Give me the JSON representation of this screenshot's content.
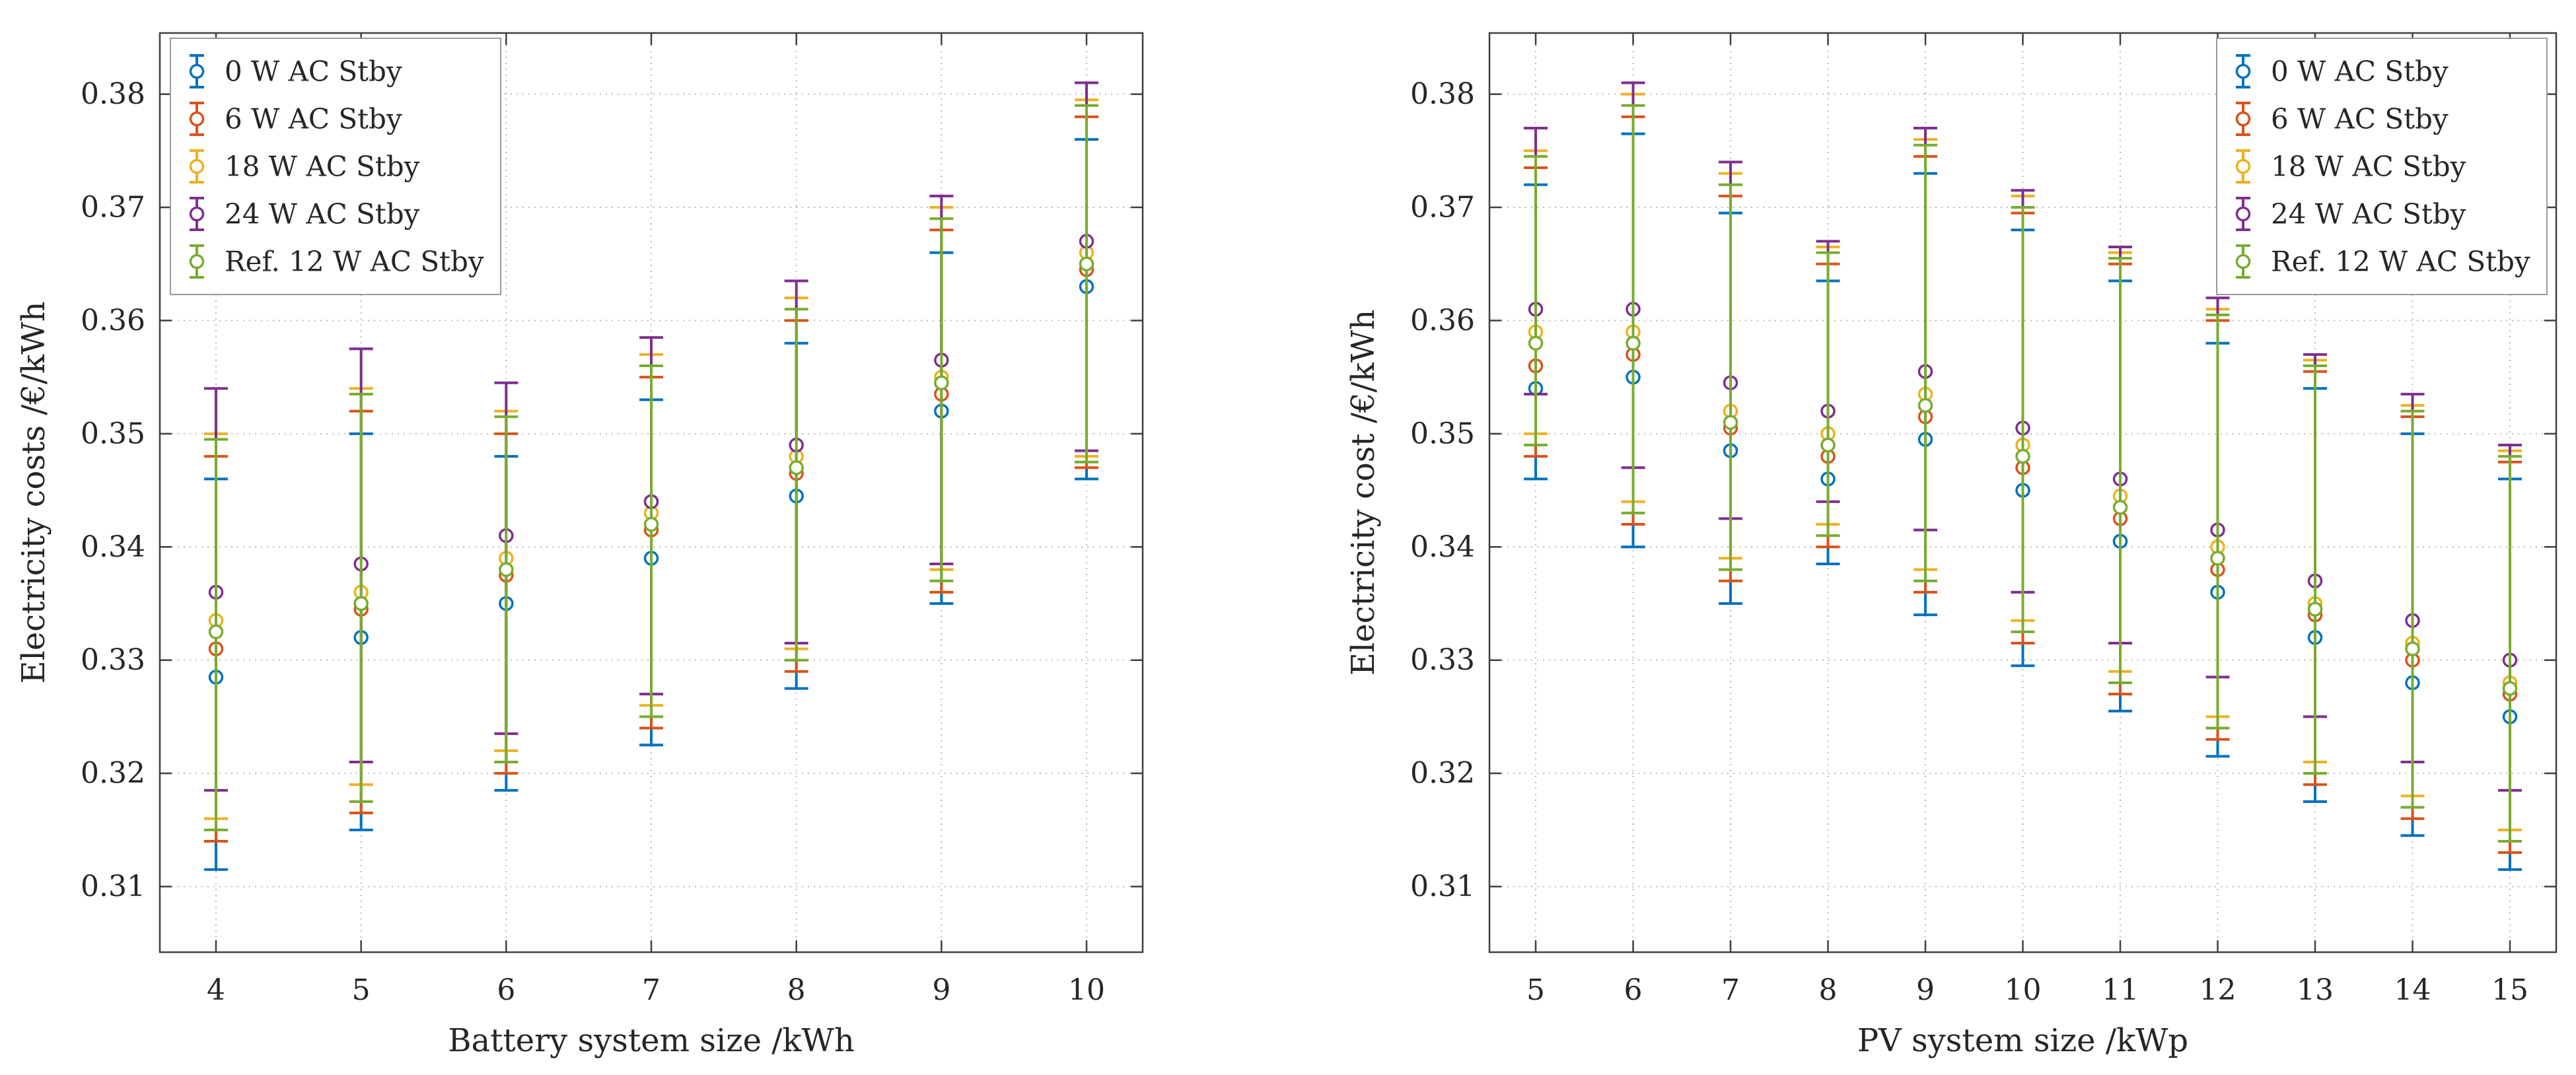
{
  "figure": {
    "background": "#ffffff",
    "text_color": "#262626",
    "grid_color": "#b9b9b9",
    "axis_color": "#3f3f3f",
    "legend_border_color": "#9a9a9a"
  },
  "chart_data": [
    {
      "id": "battery",
      "type": "errorbar",
      "title": "",
      "xlabel": "Battery system size /kWh",
      "ylabel": "Electricity costs /€/kWh",
      "x": [
        4,
        5,
        6,
        7,
        8,
        9,
        10
      ],
      "ylim": [
        0.3042,
        0.3854
      ],
      "yticks": [
        0.31,
        0.32,
        0.33,
        0.34,
        0.35,
        0.36,
        0.37,
        0.38
      ],
      "grid": true,
      "legend_position": "top-left",
      "series": [
        {
          "name": "0 W AC Stby",
          "color": "#0072BD",
          "centers": [
            0.3285,
            0.332,
            0.335,
            0.339,
            0.3445,
            0.352,
            0.363
          ],
          "lower": [
            0.3115,
            0.315,
            0.3185,
            0.3225,
            0.3275,
            0.335,
            0.346
          ],
          "upper": [
            0.346,
            0.35,
            0.348,
            0.353,
            0.358,
            0.366,
            0.376
          ]
        },
        {
          "name": "6 W AC Stby",
          "color": "#D95319",
          "centers": [
            0.331,
            0.3345,
            0.3375,
            0.3415,
            0.3465,
            0.3535,
            0.3645
          ],
          "lower": [
            0.314,
            0.3165,
            0.32,
            0.324,
            0.329,
            0.336,
            0.347
          ],
          "upper": [
            0.348,
            0.352,
            0.35,
            0.355,
            0.36,
            0.368,
            0.378
          ]
        },
        {
          "name": "18 W AC Stby",
          "color": "#EDB120",
          "centers": [
            0.3335,
            0.336,
            0.339,
            0.343,
            0.348,
            0.355,
            0.366
          ],
          "lower": [
            0.316,
            0.319,
            0.322,
            0.326,
            0.331,
            0.338,
            0.348
          ],
          "upper": [
            0.35,
            0.354,
            0.352,
            0.357,
            0.362,
            0.37,
            0.3795
          ]
        },
        {
          "name": "24 W AC Stby",
          "color": "#7E2F8E",
          "centers": [
            0.336,
            0.3385,
            0.341,
            0.344,
            0.349,
            0.3565,
            0.367
          ],
          "lower": [
            0.3185,
            0.321,
            0.3235,
            0.327,
            0.3315,
            0.3385,
            0.3485
          ],
          "upper": [
            0.354,
            0.3575,
            0.3545,
            0.3585,
            0.3635,
            0.371,
            0.381
          ]
        },
        {
          "name": "Ref. 12 W AC Stby",
          "color": "#77AC30",
          "centers": [
            0.3325,
            0.335,
            0.338,
            0.342,
            0.347,
            0.3545,
            0.365
          ],
          "lower": [
            0.315,
            0.3175,
            0.321,
            0.325,
            0.33,
            0.337,
            0.3475
          ],
          "upper": [
            0.3495,
            0.3535,
            0.3515,
            0.356,
            0.361,
            0.369,
            0.379
          ]
        }
      ]
    },
    {
      "id": "pv",
      "type": "errorbar",
      "title": "",
      "xlabel": "PV system size /kWp",
      "ylabel": "Electricity cost /€/kWh",
      "x": [
        5,
        6,
        7,
        8,
        9,
        10,
        11,
        12,
        13,
        14,
        15
      ],
      "ylim": [
        0.3042,
        0.3854
      ],
      "yticks": [
        0.31,
        0.32,
        0.33,
        0.34,
        0.35,
        0.36,
        0.37,
        0.38
      ],
      "grid": true,
      "legend_position": "top-right",
      "series": [
        {
          "name": "0 W AC Stby",
          "color": "#0072BD",
          "centers": [
            0.354,
            0.355,
            0.3485,
            0.346,
            0.3495,
            0.345,
            0.3405,
            0.336,
            0.332,
            0.328,
            0.325
          ],
          "lower": [
            0.346,
            0.34,
            0.335,
            0.3385,
            0.334,
            0.3295,
            0.3255,
            0.3215,
            0.3175,
            0.3145,
            0.3115
          ],
          "upper": [
            0.372,
            0.3765,
            0.3695,
            0.3635,
            0.373,
            0.368,
            0.3635,
            0.358,
            0.354,
            0.35,
            0.346
          ]
        },
        {
          "name": "6 W AC Stby",
          "color": "#D95319",
          "centers": [
            0.356,
            0.357,
            0.3505,
            0.348,
            0.3515,
            0.347,
            0.3425,
            0.338,
            0.334,
            0.33,
            0.327
          ],
          "lower": [
            0.348,
            0.342,
            0.337,
            0.34,
            0.336,
            0.3315,
            0.327,
            0.323,
            0.319,
            0.316,
            0.313
          ],
          "upper": [
            0.3735,
            0.378,
            0.371,
            0.365,
            0.3745,
            0.3695,
            0.365,
            0.36,
            0.3555,
            0.3515,
            0.3475
          ]
        },
        {
          "name": "18 W AC Stby",
          "color": "#EDB120",
          "centers": [
            0.359,
            0.359,
            0.352,
            0.35,
            0.3535,
            0.349,
            0.3445,
            0.34,
            0.335,
            0.3315,
            0.328
          ],
          "lower": [
            0.35,
            0.344,
            0.339,
            0.342,
            0.338,
            0.3335,
            0.329,
            0.325,
            0.321,
            0.318,
            0.315
          ],
          "upper": [
            0.375,
            0.38,
            0.373,
            0.3665,
            0.376,
            0.371,
            0.366,
            0.361,
            0.3565,
            0.3525,
            0.3485
          ]
        },
        {
          "name": "24 W AC Stby",
          "color": "#7E2F8E",
          "centers": [
            0.361,
            0.361,
            0.3545,
            0.352,
            0.3555,
            0.3505,
            0.346,
            0.3415,
            0.337,
            0.3335,
            0.33
          ],
          "lower": [
            0.3535,
            0.347,
            0.3425,
            0.344,
            0.3415,
            0.336,
            0.3315,
            0.3285,
            0.325,
            0.321,
            0.3185
          ],
          "upper": [
            0.377,
            0.381,
            0.374,
            0.367,
            0.377,
            0.3715,
            0.3665,
            0.362,
            0.357,
            0.3535,
            0.349
          ]
        },
        {
          "name": "Ref. 12 W AC Stby",
          "color": "#77AC30",
          "centers": [
            0.358,
            0.358,
            0.351,
            0.349,
            0.3525,
            0.348,
            0.3435,
            0.339,
            0.3345,
            0.331,
            0.3275
          ],
          "lower": [
            0.349,
            0.343,
            0.338,
            0.341,
            0.337,
            0.3325,
            0.328,
            0.324,
            0.32,
            0.317,
            0.314
          ],
          "upper": [
            0.3745,
            0.379,
            0.372,
            0.366,
            0.3755,
            0.37,
            0.3655,
            0.3605,
            0.356,
            0.352,
            0.348
          ]
        }
      ]
    }
  ]
}
